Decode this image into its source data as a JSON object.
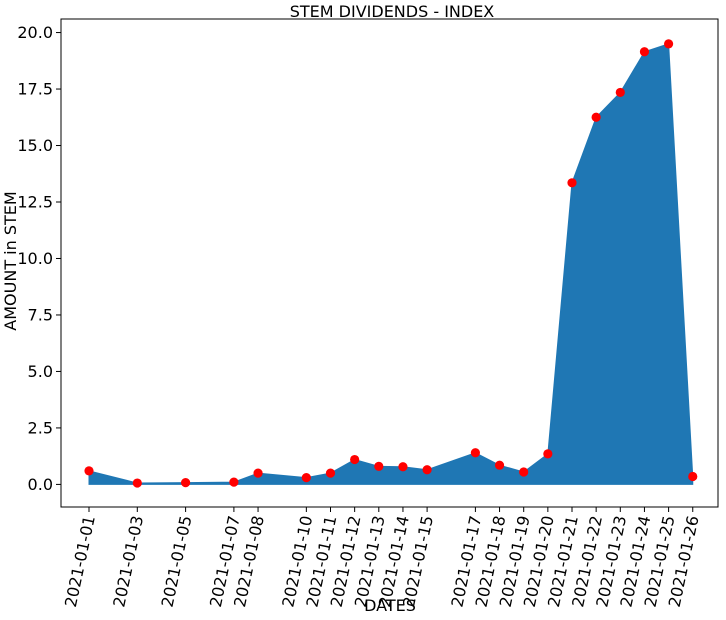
{
  "chart_data": {
    "type": "area",
    "title": "STEM DIVIDENDS - INDEX",
    "xlabel": "DATES",
    "ylabel": "AMOUNT in STEM",
    "x": [
      "2021-01-01",
      "2021-01-03",
      "2021-01-05",
      "2021-01-07",
      "2021-01-08",
      "2021-01-10",
      "2021-01-11",
      "2021-01-12",
      "2021-01-13",
      "2021-01-14",
      "2021-01-15",
      "2021-01-17",
      "2021-01-18",
      "2021-01-19",
      "2021-01-20",
      "2021-01-21",
      "2021-01-22",
      "2021-01-23",
      "2021-01-24",
      "2021-01-25",
      "2021-01-26"
    ],
    "values": [
      0.6,
      0.06,
      0.08,
      0.1,
      0.5,
      0.3,
      0.5,
      1.1,
      0.8,
      0.78,
      0.65,
      1.4,
      0.85,
      0.55,
      1.35,
      13.35,
      16.25,
      17.35,
      19.15,
      19.5,
      0.35
    ],
    "ylim": [
      -1.0,
      20.6
    ],
    "yticks": [
      0.0,
      2.5,
      5.0,
      7.5,
      10.0,
      12.5,
      15.0,
      17.5,
      20.0
    ],
    "ytick_labels": [
      "0.0",
      "2.5",
      "5.0",
      "7.5",
      "10.0",
      "12.5",
      "15.0",
      "17.5",
      "20.0"
    ],
    "grid": false,
    "fill_color": "#1f77b4",
    "marker_color": "#ff0000"
  }
}
